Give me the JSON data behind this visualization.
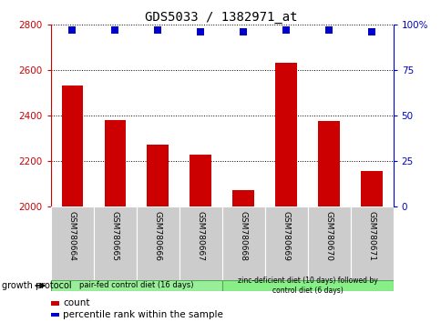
{
  "title": "GDS5033 / 1382971_at",
  "samples": [
    "GSM780664",
    "GSM780665",
    "GSM780666",
    "GSM780667",
    "GSM780668",
    "GSM780669",
    "GSM780670",
    "GSM780671"
  ],
  "counts": [
    2530,
    2380,
    2270,
    2225,
    2070,
    2630,
    2375,
    2155
  ],
  "percentiles": [
    97,
    97,
    97,
    96,
    96,
    97,
    97,
    96
  ],
  "ylim_left": [
    2000,
    2800
  ],
  "ylim_right": [
    0,
    100
  ],
  "yticks_left": [
    2000,
    2200,
    2400,
    2600,
    2800
  ],
  "yticks_right": [
    0,
    25,
    50,
    75,
    100
  ],
  "bar_color": "#cc0000",
  "dot_color": "#0000cc",
  "left_axis_color": "#cc0000",
  "right_axis_color": "#0000cc",
  "grid_color": "#000000",
  "plot_bg_color": "#ffffff",
  "sample_box_color": "#cccccc",
  "group1_color": "#99ee99",
  "group2_color": "#88ee88",
  "group1_label": "pair-fed control diet (16 days)",
  "group2_label": "zinc-deficient diet (10 days) followed by\ncontrol diet (6 days)",
  "growth_protocol_label": "growth protocol",
  "legend_count_label": "count",
  "legend_pct_label": "percentile rank within the sample",
  "bar_width": 0.5,
  "dot_size": 30
}
